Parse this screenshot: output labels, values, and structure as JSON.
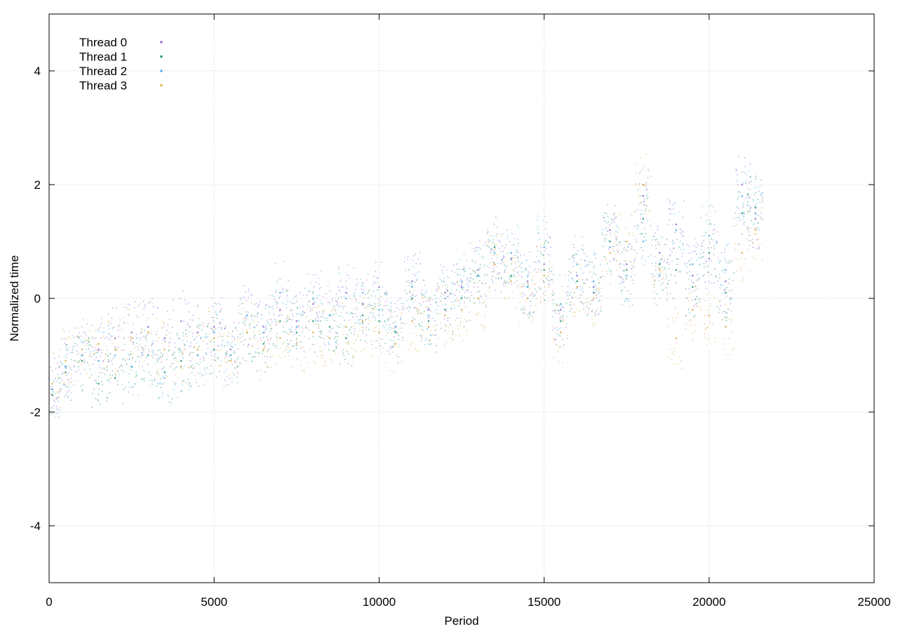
{
  "chart_data": {
    "type": "scatter",
    "title": "",
    "xlabel": "Period",
    "ylabel": "Normalized time",
    "xlim": [
      0,
      25000
    ],
    "ylim": [
      -5,
      5
    ],
    "xticks": [
      0,
      5000,
      10000,
      15000,
      20000,
      25000
    ],
    "yticks": [
      -4,
      -2,
      0,
      2,
      4
    ],
    "grid": true,
    "legend_position": "top-left",
    "series": [
      {
        "name": "Thread 0",
        "color": "#9b6fd8",
        "x": [
          100,
          500,
          1000,
          1500,
          2000,
          2500,
          3000,
          3500,
          4000,
          4500,
          5000,
          5500,
          6000,
          6500,
          7000,
          7500,
          8000,
          8500,
          9000,
          9500,
          10000,
          10500,
          11000,
          11500,
          12000,
          12500,
          13000,
          13500,
          14000,
          14500,
          15000,
          15500,
          16000,
          16500,
          17000,
          17500,
          18000,
          18500,
          19000,
          19500,
          20000,
          20500,
          21000,
          21400
        ],
        "y": [
          -1.6,
          -1.2,
          -1.0,
          -0.9,
          -0.7,
          -0.6,
          -0.5,
          -0.7,
          -0.4,
          -0.6,
          -0.5,
          -0.9,
          -0.3,
          -0.5,
          -0.2,
          -0.4,
          -0.1,
          -0.3,
          0.1,
          -0.1,
          0.2,
          -0.5,
          0.3,
          -0.2,
          0.1,
          0.2,
          0.5,
          0.6,
          0.7,
          0.3,
          0.6,
          -0.2,
          0.4,
          0.2,
          1.2,
          0.6,
          1.8,
          0.8,
          1.3,
          0.4,
          0.7,
          0.3,
          2.0,
          1.4
        ]
      },
      {
        "name": "Thread 1",
        "color": "#2a9a78",
        "x": [
          100,
          500,
          1000,
          1500,
          2000,
          2500,
          3000,
          3500,
          4000,
          4500,
          5000,
          5500,
          6000,
          6500,
          7000,
          7500,
          8000,
          8500,
          9000,
          9500,
          10000,
          10500,
          11000,
          11500,
          12000,
          12500,
          13000,
          13500,
          14000,
          14500,
          15000,
          15500,
          16000,
          16500,
          17000,
          17500,
          18000,
          18500,
          19000,
          19500,
          20000,
          20500,
          21000,
          21400
        ],
        "y": [
          -1.7,
          -1.3,
          -1.1,
          -1.5,
          -1.4,
          -1.2,
          -1.0,
          -1.3,
          -1.1,
          -1.0,
          -0.9,
          -1.0,
          -0.6,
          -0.8,
          -0.4,
          -0.6,
          -0.4,
          -0.5,
          -0.7,
          -0.3,
          -0.4,
          -0.6,
          0.0,
          -0.4,
          -0.2,
          0.0,
          0.4,
          0.9,
          0.4,
          0.2,
          0.5,
          -0.4,
          0.3,
          0.1,
          1.0,
          0.5,
          1.4,
          0.6,
          0.5,
          0.2,
          0.8,
          0.1,
          1.5,
          1.6
        ]
      },
      {
        "name": "Thread 2",
        "color": "#56b4e9",
        "x": [
          100,
          500,
          1000,
          1500,
          2000,
          2500,
          3000,
          3500,
          4000,
          4500,
          5000,
          5500,
          6000,
          6500,
          7000,
          7500,
          8000,
          8500,
          9000,
          9500,
          10000,
          10500,
          11000,
          11500,
          12000,
          12500,
          13000,
          13500,
          14000,
          14500,
          15000,
          15500,
          16000,
          16500,
          17000,
          17500,
          18000,
          18500,
          19000,
          19500,
          20000,
          20500,
          21000,
          21400
        ],
        "y": [
          -1.6,
          -1.2,
          -1.0,
          -1.1,
          -1.0,
          -1.2,
          -1.0,
          -1.4,
          -1.2,
          -1.0,
          -0.6,
          -1.0,
          -0.3,
          -0.6,
          0.1,
          -0.5,
          0.0,
          -0.3,
          0.0,
          0.1,
          -0.2,
          -0.5,
          0.2,
          -0.3,
          0.0,
          0.3,
          0.4,
          0.8,
          0.8,
          0.2,
          0.9,
          -0.1,
          0.6,
          0.3,
          0.9,
          0.4,
          1.0,
          0.4,
          1.2,
          0.6,
          1.1,
          0.5,
          1.8,
          1.5
        ]
      },
      {
        "name": "Thread 3",
        "color": "#e0b050",
        "x": [
          100,
          500,
          1000,
          1500,
          2000,
          2500,
          3000,
          3500,
          4000,
          4500,
          5000,
          5500,
          6000,
          6500,
          7000,
          7500,
          8000,
          8500,
          9000,
          9500,
          10000,
          10500,
          11000,
          11500,
          12000,
          12500,
          13000,
          13500,
          14000,
          14500,
          15000,
          15500,
          16000,
          16500,
          17000,
          17500,
          18000,
          18500,
          19000,
          19500,
          20000,
          20500,
          21000,
          21400
        ],
        "y": [
          -1.5,
          -1.1,
          -0.9,
          -0.8,
          -0.9,
          -0.7,
          -0.6,
          -0.9,
          -1.2,
          -0.9,
          -0.7,
          -1.1,
          -0.6,
          -0.9,
          -0.7,
          -0.8,
          -0.6,
          -0.7,
          -0.5,
          -0.4,
          -0.6,
          -0.8,
          -0.4,
          -0.5,
          -0.3,
          -0.2,
          0.0,
          0.6,
          0.3,
          0.0,
          0.4,
          -0.6,
          0.2,
          0.0,
          0.8,
          1.0,
          2.0,
          0.5,
          -0.7,
          -0.2,
          -0.3,
          -0.5,
          0.8,
          1.2
        ]
      }
    ]
  }
}
